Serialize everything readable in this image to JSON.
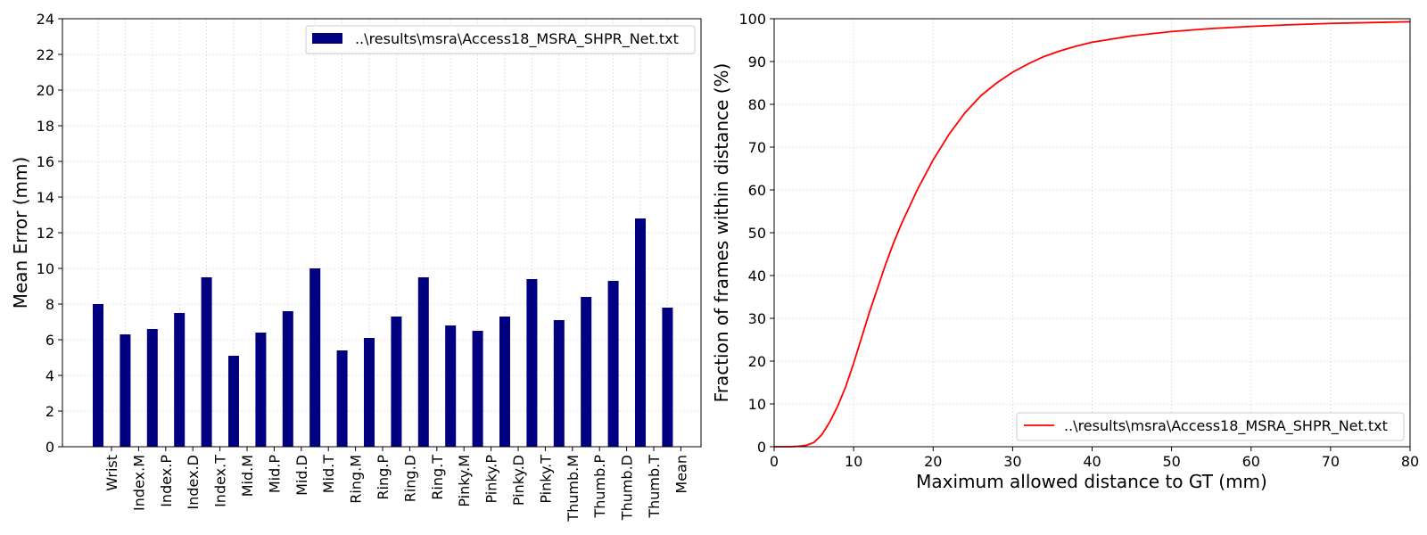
{
  "colors": {
    "bar": "#000080",
    "line": "#ff0000",
    "grid": "#dcdcdc",
    "axis": "#000000"
  },
  "chart_data": [
    {
      "type": "bar",
      "title": "",
      "xlabel": "",
      "ylabel": "Mean Error (mm)",
      "ylim": [
        0,
        24
      ],
      "yticks": [
        0,
        2,
        4,
        6,
        8,
        10,
        12,
        14,
        16,
        18,
        20,
        22,
        24
      ],
      "grid": true,
      "legend_position": "top-right",
      "categories": [
        "Wrist",
        "Index.M",
        "Index.P",
        "Index.D",
        "Index.T",
        "Mid.M",
        "Mid.P",
        "Mid.D",
        "Mid.T",
        "Ring.M",
        "Ring.P",
        "Ring.D",
        "Ring.T",
        "Pinky.M",
        "Pinky.P",
        "Pinky.D",
        "Pinky.T",
        "Thumb.M",
        "Thumb.P",
        "Thumb.D",
        "Thumb.T",
        "Mean"
      ],
      "series": [
        {
          "name": "..\\results\\msra\\Access18_MSRA_SHPR_Net.txt",
          "values": [
            8.0,
            6.3,
            6.6,
            7.5,
            9.5,
            5.1,
            6.4,
            7.6,
            10.0,
            5.4,
            6.1,
            7.3,
            9.5,
            6.8,
            6.5,
            7.3,
            9.4,
            7.1,
            8.4,
            9.3,
            12.8,
            7.8
          ]
        }
      ]
    },
    {
      "type": "line",
      "title": "",
      "xlabel": "Maximum allowed distance to GT (mm)",
      "ylabel": "Fraction of frames within distance (%)",
      "xlim": [
        0,
        80
      ],
      "ylim": [
        0,
        100
      ],
      "xticks": [
        0,
        10,
        20,
        30,
        40,
        50,
        60,
        70,
        80
      ],
      "yticks": [
        0,
        10,
        20,
        30,
        40,
        50,
        60,
        70,
        80,
        90,
        100
      ],
      "grid": true,
      "legend_position": "bottom-right",
      "series": [
        {
          "name": "..\\results\\msra\\Access18_MSRA_SHPR_Net.txt",
          "x": [
            0,
            1,
            2,
            3,
            4,
            5,
            6,
            7,
            8,
            9,
            10,
            11,
            12,
            13,
            14,
            15,
            16,
            17,
            18,
            19,
            20,
            22,
            24,
            26,
            28,
            30,
            32,
            34,
            36,
            38,
            40,
            45,
            50,
            55,
            60,
            65,
            70,
            75,
            80
          ],
          "y": [
            0,
            0,
            0,
            0.1,
            0.3,
            1.0,
            2.8,
            5.8,
            9.5,
            14.0,
            19.5,
            25.5,
            31.5,
            37.0,
            42.5,
            47.5,
            52.0,
            56.0,
            60.0,
            63.5,
            67.0,
            73.0,
            78.0,
            82.0,
            85.0,
            87.5,
            89.5,
            91.2,
            92.5,
            93.6,
            94.5,
            96.0,
            97.0,
            97.7,
            98.2,
            98.6,
            98.9,
            99.1,
            99.3
          ]
        }
      ]
    }
  ]
}
